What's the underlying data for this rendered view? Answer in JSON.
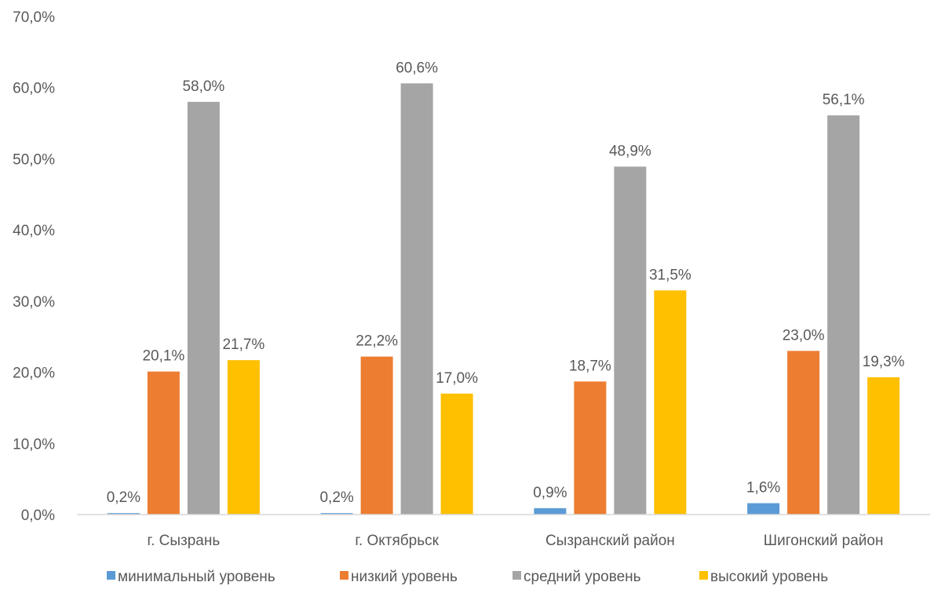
{
  "chart_data": {
    "type": "bar",
    "categories": [
      "г. Сызрань",
      "г. Октябрьск",
      "Сызранский район",
      "Шигонский район"
    ],
    "series": [
      {
        "name": "минимальный уровень",
        "color": "#5B9BD5",
        "values": [
          0.2,
          0.2,
          0.9,
          1.6
        ],
        "labels": [
          "0,2%",
          "0,2%",
          "0,9%",
          "1,6%"
        ]
      },
      {
        "name": "низкий уровень",
        "color": "#ED7D31",
        "values": [
          20.1,
          22.2,
          18.7,
          23.0
        ],
        "labels": [
          "20,1%",
          "22,2%",
          "18,7%",
          "23,0%"
        ]
      },
      {
        "name": "средний уровень",
        "color": "#A5A5A5",
        "values": [
          58.0,
          60.6,
          48.9,
          56.1
        ],
        "labels": [
          "58,0%",
          "60,6%",
          "48,9%",
          "56,1%"
        ]
      },
      {
        "name": "высокий уровень",
        "color": "#FFC000",
        "values": [
          21.7,
          17.0,
          31.5,
          19.3
        ],
        "labels": [
          "21,7%",
          "17,0%",
          "31,5%",
          "19,3%"
        ]
      }
    ],
    "ylim": [
      0,
      70
    ],
    "yticks": [
      0,
      10,
      20,
      30,
      40,
      50,
      60,
      70
    ],
    "ytick_labels": [
      "0,0%",
      "10,0%",
      "20,0%",
      "30,0%",
      "40,0%",
      "50,0%",
      "60,0%",
      "70,0%"
    ],
    "grid": false,
    "legend_position": "bottom",
    "axis_color": "#D9D9D9",
    "text_color": "#595959"
  }
}
